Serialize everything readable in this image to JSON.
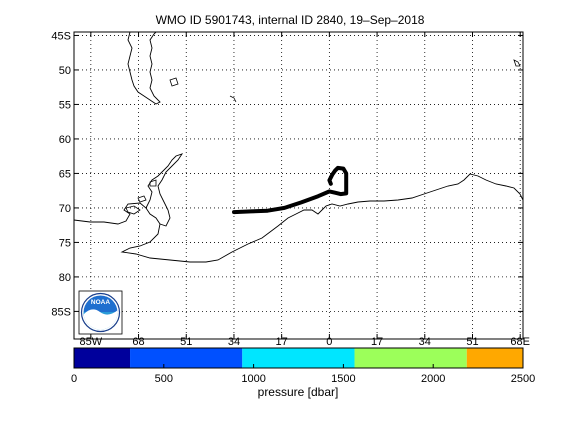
{
  "title": "WMO ID 5901743, internal ID 2840, 19–Sep–2018",
  "map": {
    "lat_labels": [
      "45S",
      "50",
      "55",
      "60",
      "65",
      "70",
      "75",
      "80",
      "85S"
    ],
    "lat_values": [
      -45,
      -50,
      -55,
      -60,
      -65,
      -70,
      -75,
      -80,
      -85
    ],
    "lon_labels": [
      "85W",
      "68",
      "51",
      "34",
      "17",
      "0",
      "17",
      "34",
      "51",
      "68E"
    ],
    "lon_values": [
      -85,
      -68,
      -51,
      -34,
      -17,
      0,
      17,
      34,
      51,
      68
    ],
    "lat_range": [
      -89,
      -44.5
    ],
    "lon_range": [
      -91,
      69
    ],
    "grid": true,
    "track": {
      "color": "#000000",
      "points": [
        [
          -34,
          -70.6
        ],
        [
          -28,
          -70.5
        ],
        [
          -22,
          -70.4
        ],
        [
          -16,
          -70.0
        ],
        [
          -10,
          -69.2
        ],
        [
          -4,
          -68.3
        ],
        [
          0,
          -67.6
        ],
        [
          2,
          -67.8
        ],
        [
          4,
          -68.0
        ],
        [
          6,
          -67.9
        ],
        [
          6,
          -66.5
        ],
        [
          6,
          -65.0
        ],
        [
          5,
          -64.3
        ],
        [
          3,
          -64.2
        ],
        [
          2,
          -64.6
        ],
        [
          1,
          -65.2
        ],
        [
          0,
          -66.0
        ],
        [
          0.5,
          -66.5
        ]
      ]
    }
  },
  "colorbar": {
    "label": "pressure [dbar]",
    "tick_labels": [
      "0",
      "500",
      "1000",
      "1500",
      "2000",
      "2500"
    ],
    "tick_values": [
      0,
      500,
      1000,
      1500,
      2000,
      2500
    ],
    "range": [
      0,
      2500
    ],
    "segments": [
      {
        "from": 0,
        "to": 312,
        "color": "#00009c"
      },
      {
        "from": 312,
        "to": 937,
        "color": "#0050ff"
      },
      {
        "from": 937,
        "to": 1562,
        "color": "#00e6ff"
      },
      {
        "from": 1562,
        "to": 2187,
        "color": "#9cff5a"
      },
      {
        "from": 2187,
        "to": 2500,
        "color": "#ffa800"
      }
    ]
  },
  "logo": {
    "text": "NOAA",
    "colors": {
      "sky": "#1f6fcf",
      "sea": "#2a9bd8",
      "bird": "#ffffff"
    }
  }
}
